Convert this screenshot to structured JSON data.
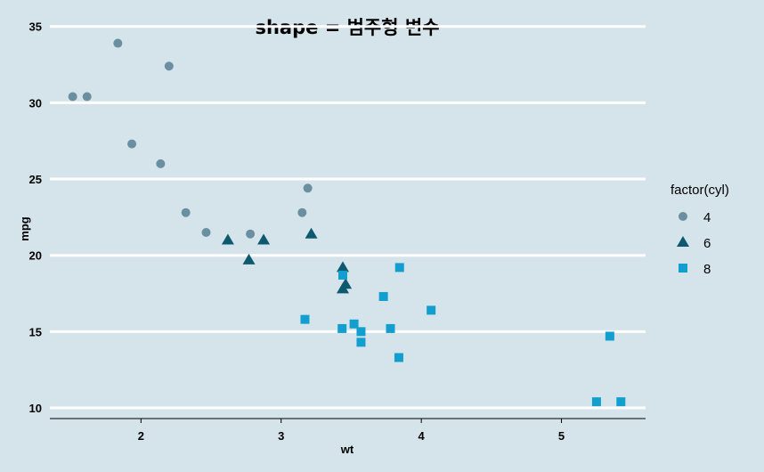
{
  "chart_data": {
    "type": "scatter",
    "title": "shape = 범주형 변수",
    "xlabel": "wt",
    "ylabel": "mpg",
    "xlim": [
      1.35,
      5.6
    ],
    "ylim": [
      9.3,
      35.1
    ],
    "x_ticks": [
      2,
      3,
      4,
      5
    ],
    "y_ticks": [
      10,
      15,
      20,
      25,
      30,
      35
    ],
    "grid": "horizontal major only",
    "legend": {
      "title": "factor(cyl)",
      "placement": "right"
    },
    "series": [
      {
        "name": "4",
        "shape": "circle",
        "color": "#6a8fa0",
        "points": [
          [
            2.32,
            22.8
          ],
          [
            3.19,
            24.4
          ],
          [
            3.15,
            22.8
          ],
          [
            2.2,
            32.4
          ],
          [
            1.615,
            30.4
          ],
          [
            1.835,
            33.9
          ],
          [
            2.465,
            21.5
          ],
          [
            1.935,
            27.3
          ],
          [
            2.14,
            26.0
          ],
          [
            1.513,
            30.4
          ],
          [
            2.78,
            21.4
          ]
        ]
      },
      {
        "name": "6",
        "shape": "triangle",
        "color": "#0e5870",
        "points": [
          [
            2.62,
            21.0
          ],
          [
            2.875,
            21.0
          ],
          [
            3.215,
            21.4
          ],
          [
            3.46,
            18.1
          ],
          [
            3.44,
            19.2
          ],
          [
            3.44,
            17.8
          ],
          [
            2.77,
            19.7
          ]
        ]
      },
      {
        "name": "8",
        "shape": "square",
        "color": "#129fd0",
        "points": [
          [
            3.44,
            18.7
          ],
          [
            3.57,
            14.3
          ],
          [
            4.07,
            16.4
          ],
          [
            3.73,
            17.3
          ],
          [
            3.78,
            15.2
          ],
          [
            5.25,
            10.4
          ],
          [
            5.424,
            10.4
          ],
          [
            5.345,
            14.7
          ],
          [
            3.52,
            15.5
          ],
          [
            3.435,
            15.2
          ],
          [
            3.84,
            13.3
          ],
          [
            3.845,
            19.2
          ],
          [
            3.17,
            15.8
          ],
          [
            3.57,
            15.0
          ]
        ]
      }
    ]
  }
}
